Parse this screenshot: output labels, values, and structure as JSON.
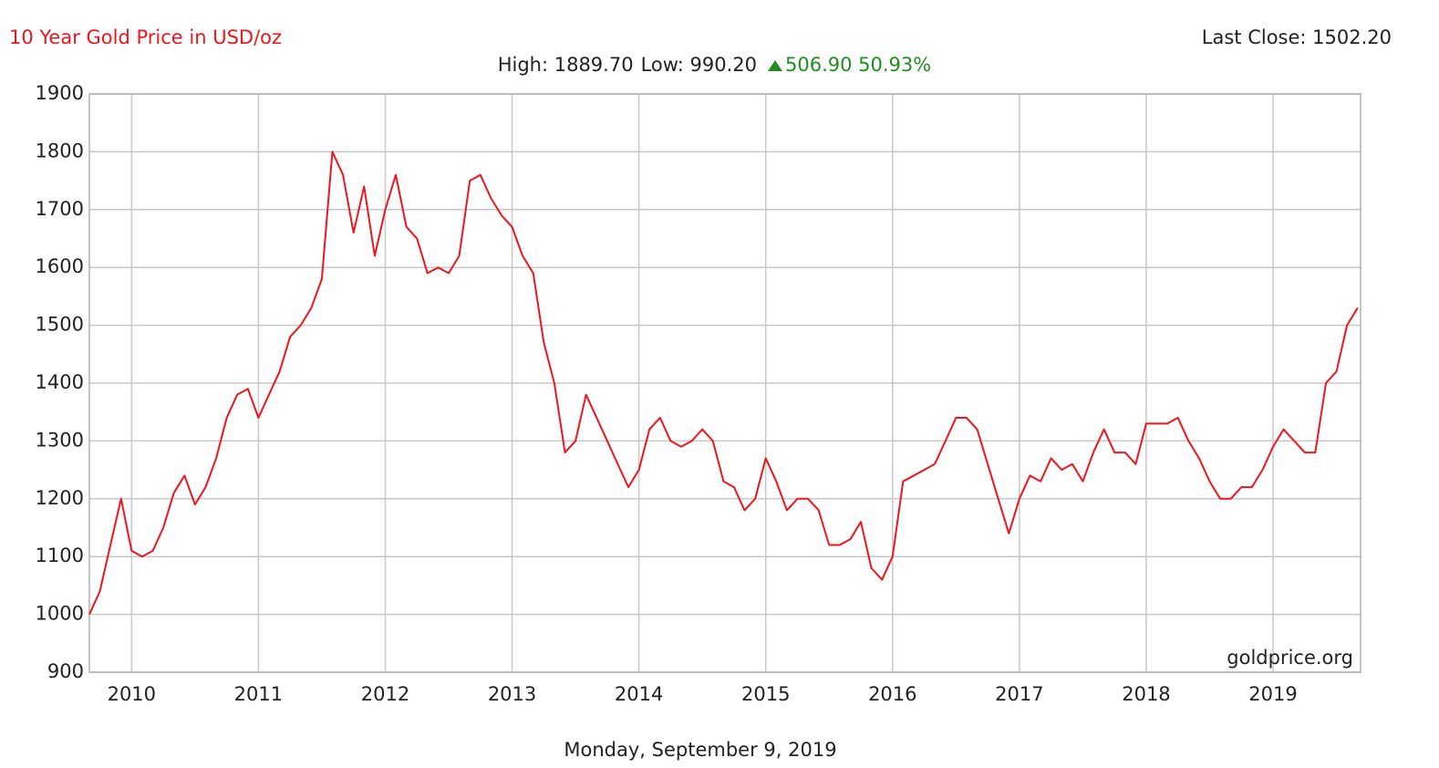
{
  "chart_data": {
    "type": "line",
    "title": "10 Year Gold Price in USD/oz",
    "last_close": "Last Close: 1502.20",
    "stats": {
      "high": "High: 1889.70",
      "low": "Low: 990.20",
      "change": "506.90 50.93%"
    },
    "watermark": "goldprice.org",
    "date": "Monday, September 9, 2019",
    "xlim": [
      2009.667,
      2019.69
    ],
    "xticks": [
      2010,
      2011,
      2012,
      2013,
      2014,
      2015,
      2016,
      2017,
      2018,
      2019
    ],
    "ylim": [
      900,
      1900
    ],
    "yticks": [
      900,
      1000,
      1100,
      1200,
      1300,
      1400,
      1500,
      1600,
      1700,
      1800,
      1900
    ],
    "grid": true,
    "x": [
      2009.667,
      2009.75,
      2009.833,
      2009.917,
      2010,
      2010.083,
      2010.167,
      2010.25,
      2010.333,
      2010.417,
      2010.5,
      2010.583,
      2010.667,
      2010.75,
      2010.833,
      2010.917,
      2011,
      2011.083,
      2011.167,
      2011.25,
      2011.333,
      2011.417,
      2011.5,
      2011.583,
      2011.667,
      2011.75,
      2011.833,
      2011.917,
      2012,
      2012.083,
      2012.167,
      2012.25,
      2012.333,
      2012.417,
      2012.5,
      2012.583,
      2012.667,
      2012.75,
      2012.833,
      2012.917,
      2013,
      2013.083,
      2013.167,
      2013.25,
      2013.333,
      2013.417,
      2013.5,
      2013.583,
      2013.667,
      2013.75,
      2013.833,
      2013.917,
      2014,
      2014.083,
      2014.167,
      2014.25,
      2014.333,
      2014.417,
      2014.5,
      2014.583,
      2014.667,
      2014.75,
      2014.833,
      2014.917,
      2015,
      2015.083,
      2015.167,
      2015.25,
      2015.333,
      2015.417,
      2015.5,
      2015.583,
      2015.667,
      2015.75,
      2015.833,
      2015.917,
      2016,
      2016.083,
      2016.167,
      2016.25,
      2016.333,
      2016.417,
      2016.5,
      2016.583,
      2016.667,
      2016.75,
      2016.833,
      2016.917,
      2017,
      2017.083,
      2017.167,
      2017.25,
      2017.333,
      2017.417,
      2017.5,
      2017.583,
      2017.667,
      2017.75,
      2017.833,
      2017.917,
      2018,
      2018.083,
      2018.167,
      2018.25,
      2018.333,
      2018.417,
      2018.5,
      2018.583,
      2018.667,
      2018.75,
      2018.833,
      2018.917,
      2019,
      2019.083,
      2019.167,
      2019.25,
      2019.333,
      2019.417,
      2019.5,
      2019.583,
      2019.667
    ],
    "series": [
      {
        "name": "Gold",
        "color": "#f0141e",
        "values": [
          1000,
          1040,
          1120,
          1200,
          1110,
          1100,
          1110,
          1150,
          1210,
          1240,
          1190,
          1220,
          1270,
          1340,
          1380,
          1390,
          1340,
          1380,
          1420,
          1480,
          1500,
          1530,
          1580,
          1800,
          1760,
          1660,
          1740,
          1620,
          1700,
          1760,
          1670,
          1650,
          1590,
          1600,
          1590,
          1620,
          1750,
          1760,
          1720,
          1690,
          1670,
          1620,
          1590,
          1470,
          1400,
          1280,
          1300,
          1380,
          1340,
          1300,
          1260,
          1220,
          1250,
          1320,
          1340,
          1300,
          1290,
          1300,
          1320,
          1300,
          1230,
          1220,
          1180,
          1200,
          1270,
          1230,
          1180,
          1200,
          1200,
          1180,
          1120,
          1120,
          1130,
          1160,
          1080,
          1060,
          1100,
          1230,
          1240,
          1250,
          1260,
          1300,
          1340,
          1340,
          1320,
          1260,
          1200,
          1140,
          1200,
          1240,
          1230,
          1270,
          1250,
          1260,
          1230,
          1280,
          1320,
          1280,
          1280,
          1260,
          1330,
          1330,
          1330,
          1340,
          1300,
          1270,
          1230,
          1200,
          1200,
          1220,
          1220,
          1250,
          1290,
          1320,
          1300,
          1280,
          1280,
          1400,
          1420,
          1500,
          1530
        ]
      }
    ]
  }
}
